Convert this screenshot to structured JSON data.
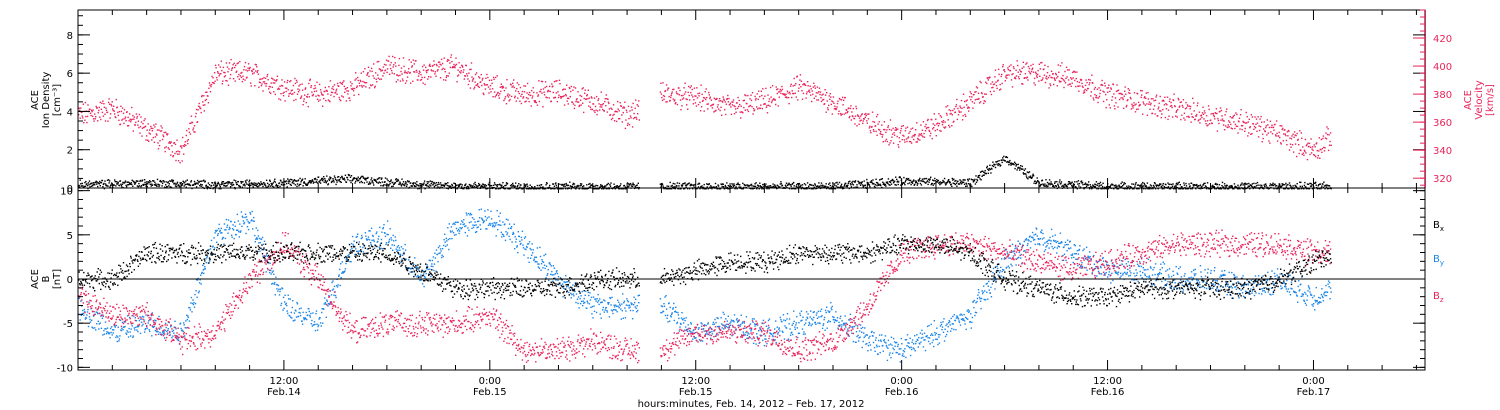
{
  "top_panel": {
    "left_axis_label": [
      "ACE",
      "Ion Density",
      "[cm⁻³]"
    ],
    "right_axis_label": [
      "ACE",
      "Velocity",
      "[km/s]"
    ]
  },
  "bottom_panel": {
    "left_axis_label": [
      "ACE",
      "B",
      "[nT]"
    ],
    "legend": [
      {
        "label": "B",
        "sub": "x",
        "color": "#000000"
      },
      {
        "label": "B",
        "sub": "y",
        "color": "#1a85e8"
      },
      {
        "label": "B",
        "sub": "z",
        "color": "#e8245a"
      }
    ]
  },
  "x_axis": {
    "title": "hours:minutes, Feb. 14, 2012 – Feb. 17, 2012",
    "ticks": [
      {
        "hour": 12,
        "top": "12:00",
        "bottom": "Feb.14"
      },
      {
        "hour": 24,
        "top": "0:00",
        "bottom": "Feb.15"
      },
      {
        "hour": 36,
        "top": "12:00",
        "bottom": "Feb.15"
      },
      {
        "hour": 48,
        "top": "0:00",
        "bottom": "Feb.16"
      },
      {
        "hour": 60,
        "top": "12:00",
        "bottom": "Feb.16"
      },
      {
        "hour": 72,
        "top": "0:00",
        "bottom": "Feb.17"
      }
    ]
  },
  "colors": {
    "density": "#000000",
    "velocity": "#e8245a",
    "bx": "#000000",
    "by": "#1a85e8",
    "bz": "#e8245a",
    "accent": "#e8245a"
  },
  "chart_data": [
    {
      "type": "scatter",
      "panel": "top",
      "xlabel": "",
      "xunits": "hours since 2012-02-14 00:00",
      "xlim": [
        0,
        78.5
      ],
      "ylim": [
        0,
        9.3
      ],
      "yticks": [
        0,
        2,
        4,
        6,
        8
      ],
      "y2lim": [
        313,
        440
      ],
      "y2ticks": [
        320,
        340,
        360,
        380,
        400,
        420
      ],
      "data_gap": [
        32.7,
        33.9
      ],
      "series": [
        {
          "axis": "left",
          "color": "#000000",
          "x": [
            0,
            4,
            8,
            12,
            16,
            20,
            24,
            28,
            32,
            36,
            40,
            44,
            48,
            52,
            54,
            56,
            60,
            64,
            68,
            72,
            73
          ],
          "y": [
            0.2,
            0.3,
            0.2,
            0.3,
            0.5,
            0.2,
            0.1,
            0.1,
            0.1,
            0.1,
            0.1,
            0.1,
            0.4,
            0.3,
            1.6,
            0.3,
            0.1,
            0.1,
            0.1,
            0.1,
            0.1
          ]
        },
        {
          "axis": "right",
          "color": "#e8245a",
          "x": [
            0,
            2,
            4,
            6,
            8,
            10,
            12,
            14,
            16,
            18,
            20,
            22,
            24,
            26,
            28,
            30,
            32,
            34,
            36,
            38,
            40,
            42,
            44,
            46,
            48,
            50,
            52,
            54,
            56,
            58,
            60,
            62,
            64,
            66,
            68,
            70,
            72,
            73
          ],
          "y": [
            365,
            370,
            355,
            340,
            395,
            395,
            385,
            380,
            385,
            400,
            395,
            400,
            385,
            380,
            382,
            375,
            365,
            380,
            378,
            370,
            375,
            385,
            375,
            360,
            350,
            358,
            375,
            395,
            395,
            392,
            380,
            375,
            370,
            365,
            360,
            352,
            340,
            350
          ]
        }
      ]
    },
    {
      "type": "scatter",
      "panel": "bottom",
      "xlabel": "hours:minutes, Feb. 14, 2012 – Feb. 17, 2012",
      "xunits": "hours since 2012-02-14 00:00",
      "xlim": [
        0,
        78.5
      ],
      "ylim": [
        -10.3,
        10.3
      ],
      "yticks": [
        -10,
        -5,
        0,
        5,
        10
      ],
      "data_gap": [
        32.7,
        33.9
      ],
      "series": [
        {
          "name": "Bx",
          "color": "#000000",
          "x": [
            0,
            2,
            4,
            6,
            8,
            10,
            12,
            14,
            16,
            18,
            20,
            22,
            24,
            26,
            28,
            30,
            32,
            34,
            36,
            38,
            40,
            42,
            44,
            46,
            48,
            50,
            52,
            54,
            56,
            58,
            60,
            62,
            64,
            66,
            68,
            70,
            72,
            73
          ],
          "y": [
            0,
            0,
            3,
            3,
            3,
            3,
            3,
            3,
            3,
            3,
            1,
            -1,
            -1,
            -1,
            -1,
            0,
            0,
            0,
            1,
            2,
            2,
            3,
            3,
            3,
            4,
            4,
            3,
            0,
            -1,
            -2,
            -2,
            -1,
            -1,
            -1,
            -1,
            0,
            2,
            3
          ]
        },
        {
          "name": "By",
          "color": "#1a85e8",
          "x": [
            0,
            2,
            4,
            6,
            8,
            10,
            12,
            14,
            16,
            18,
            20,
            22,
            24,
            26,
            28,
            30,
            32,
            34,
            36,
            38,
            40,
            42,
            44,
            46,
            48,
            50,
            52,
            54,
            56,
            58,
            60,
            62,
            64,
            66,
            68,
            70,
            72,
            73
          ],
          "y": [
            -3,
            -6,
            -5,
            -6,
            5,
            7,
            -3,
            -5,
            4,
            5,
            0,
            6,
            7,
            4,
            0,
            -3,
            -3,
            -3,
            -6,
            -5,
            -6,
            -5,
            -4,
            -7,
            -8,
            -6,
            -4,
            2,
            5,
            3,
            1,
            1,
            0,
            0,
            -1,
            0,
            -2,
            -1
          ]
        },
        {
          "name": "Bz",
          "color": "#e8245a",
          "x": [
            0,
            2,
            4,
            6,
            8,
            10,
            12,
            14,
            16,
            18,
            20,
            22,
            24,
            26,
            28,
            30,
            32,
            34,
            36,
            38,
            40,
            42,
            44,
            46,
            48,
            50,
            52,
            54,
            56,
            58,
            60,
            62,
            64,
            66,
            68,
            70,
            72,
            73
          ],
          "y": [
            -2,
            -4,
            -4,
            -7,
            -6,
            0,
            4,
            0,
            -6,
            -5,
            -5,
            -5,
            -4,
            -8,
            -8,
            -7,
            -8,
            -8,
            -6,
            -6,
            -6,
            -8,
            -7,
            -3,
            3,
            4,
            4,
            3,
            2,
            1,
            2,
            3,
            4,
            4,
            4,
            4,
            3,
            3
          ]
        }
      ]
    }
  ]
}
